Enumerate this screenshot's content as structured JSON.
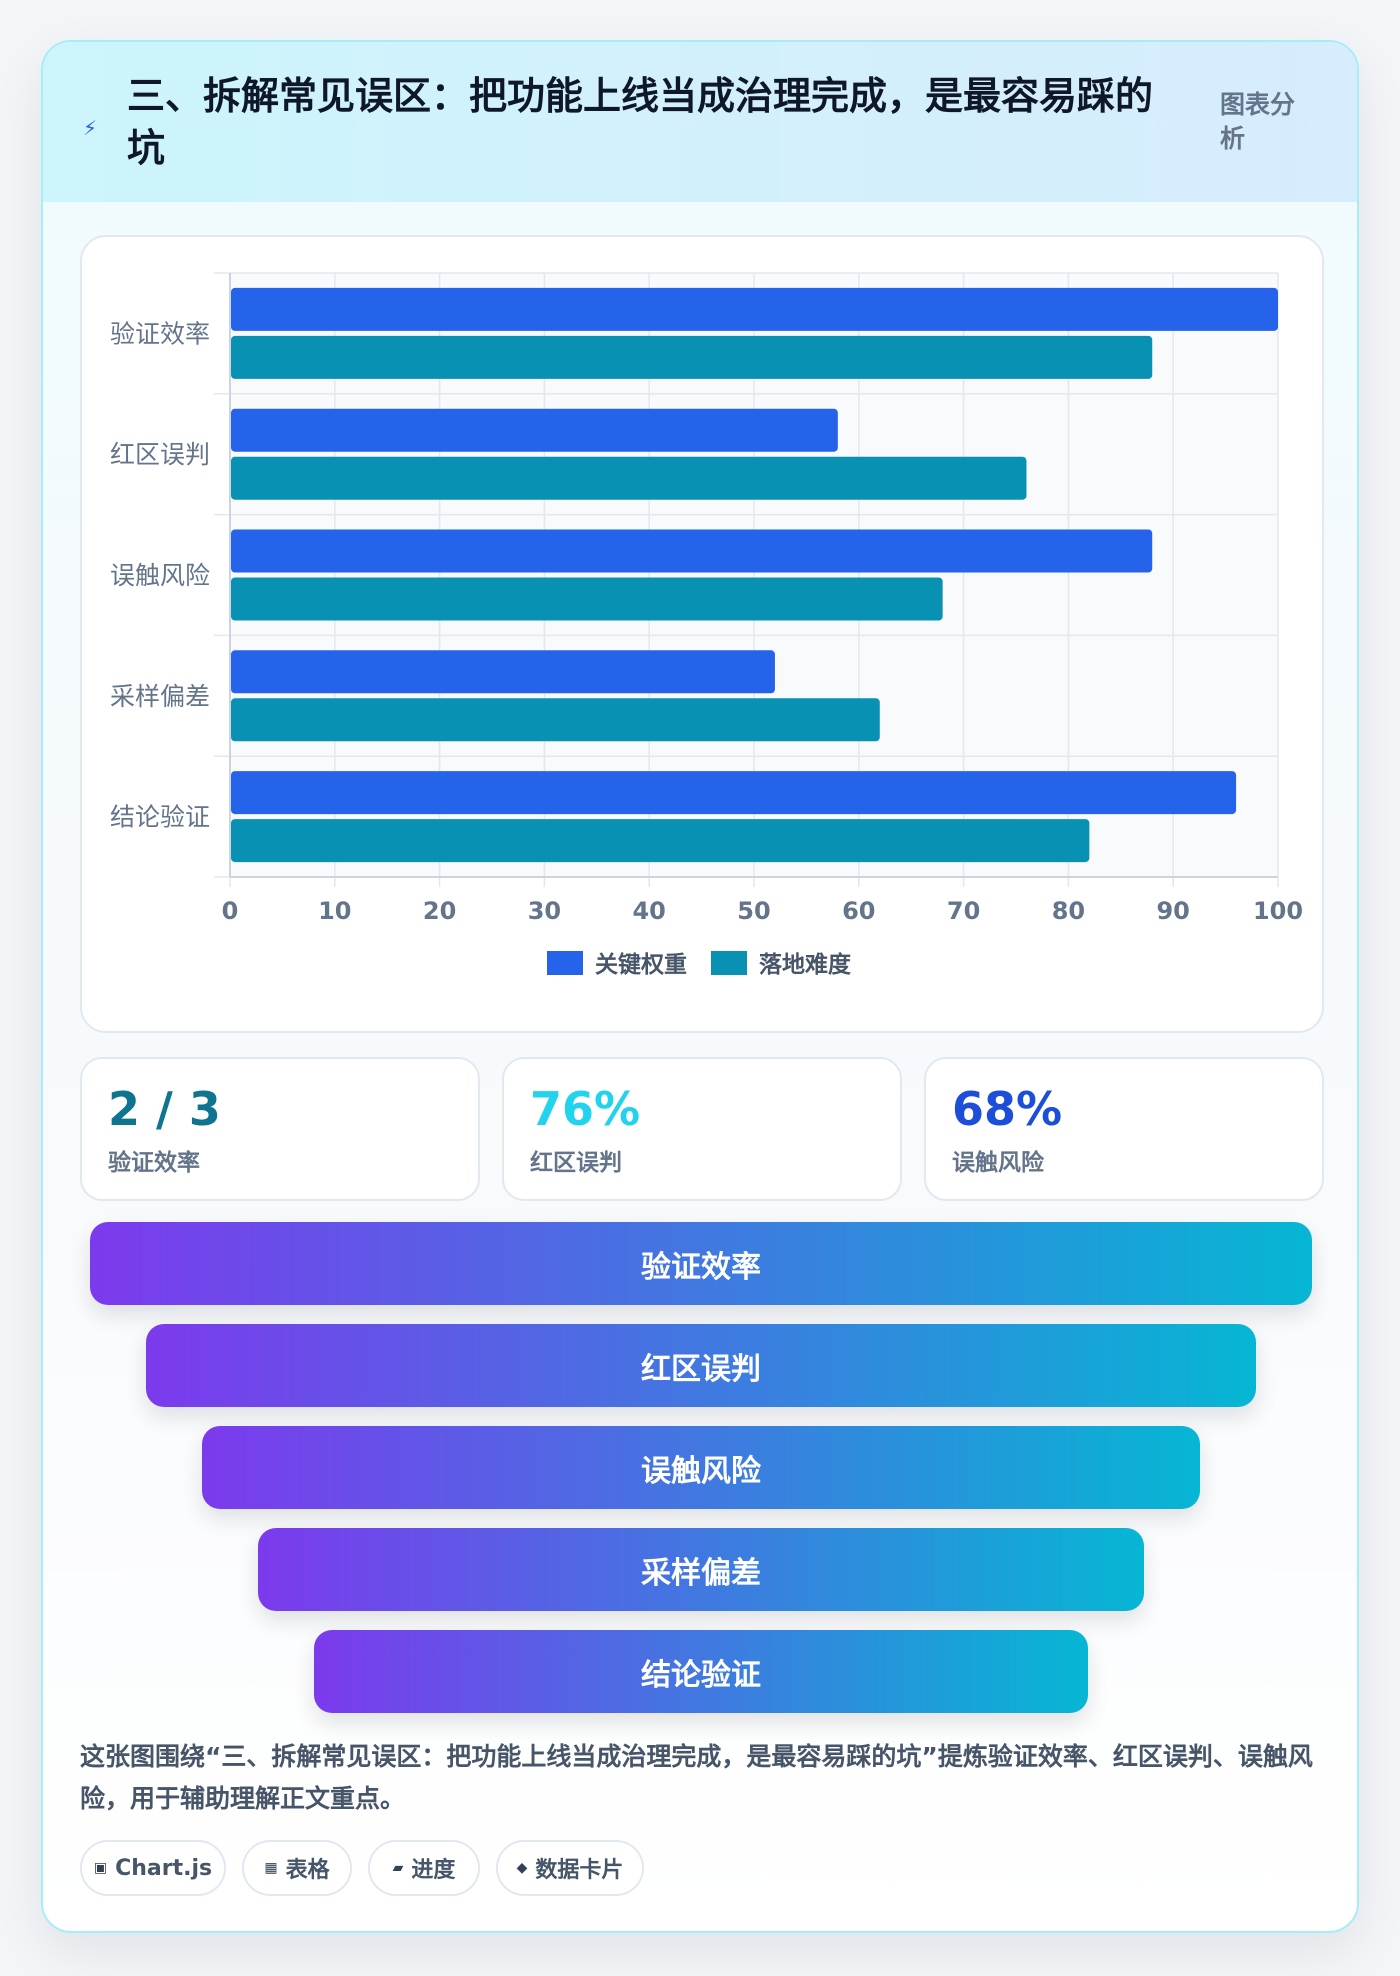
{
  "header": {
    "icon": "bolt-icon",
    "title": "三、拆解常见误区：把功能上线当成治理完成，是最容易踩的坑",
    "tag": "图表分析"
  },
  "chart_data": {
    "type": "bar",
    "orientation": "horizontal",
    "categories": [
      "验证效率",
      "红区误判",
      "误触风险",
      "采样偏差",
      "结论验证"
    ],
    "series": [
      {
        "name": "关键权重",
        "color": "#2563eb",
        "values": [
          100,
          58,
          88,
          52,
          96
        ]
      },
      {
        "name": "落地难度",
        "color": "#0891b2",
        "values": [
          88,
          76,
          68,
          62,
          82
        ]
      }
    ],
    "xlim": [
      0,
      100
    ],
    "xticks": [
      0,
      10,
      20,
      30,
      40,
      50,
      60,
      70,
      80,
      90,
      100
    ],
    "grid": true,
    "legend": "bottom"
  },
  "stats": [
    {
      "value": "2 / 3",
      "label": "验证效率",
      "color": "#0e7490"
    },
    {
      "value": "76%",
      "label": "红区误判",
      "color": "#22d3ee"
    },
    {
      "value": "68%",
      "label": "误触风险",
      "color": "#1d4ed8"
    }
  ],
  "funnel": [
    "验证效率",
    "红区误判",
    "误触风险",
    "采样偏差",
    "结论验证"
  ],
  "caption": "这张图围绕“三、拆解常见误区：把功能上线当成治理完成，是最容易踩的坑”提炼验证效率、红区误判、误触风险，用于辅助理解正文重点。",
  "pills": [
    {
      "icon": "▣",
      "label": "Chart.js"
    },
    {
      "icon": "▦",
      "label": "表格"
    },
    {
      "icon": "▰",
      "label": "进度"
    },
    {
      "icon": "◆",
      "label": "数据卡片"
    }
  ]
}
